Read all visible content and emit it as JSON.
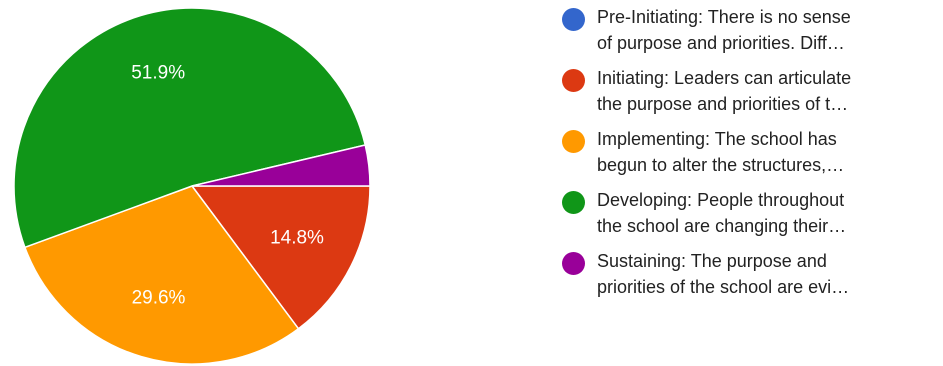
{
  "chart_data": {
    "type": "pie",
    "slices": [
      {
        "label": "Pre-Initiating: There is no sense of purpose and priorities. Diff…",
        "value": 0,
        "display": "",
        "color": "#3366cc",
        "legend_lines": [
          "Pre-Initiating: There is no sense",
          "of purpose and priorities. Diff…"
        ]
      },
      {
        "label": "Initiating: Leaders can articulate the purpose and priorities of t…",
        "value": 14.8,
        "display": "14.8%",
        "color": "#dc3912",
        "legend_lines": [
          "Initiating: Leaders can articulate",
          "the purpose and priorities of t…"
        ]
      },
      {
        "label": "Implementing: The school has begun to alter the structures,…",
        "value": 29.6,
        "display": "29.6%",
        "color": "#ff9900",
        "legend_lines": [
          "Implementing: The school has",
          "begun to alter the structures,…"
        ]
      },
      {
        "label": "Developing: People throughout the school are changing their…",
        "value": 51.9,
        "display": "51.9%",
        "color": "#109618",
        "legend_lines": [
          "Developing: People throughout",
          "the school are changing their…"
        ]
      },
      {
        "label": "Sustaining: The purpose and priorities of the school are evi…",
        "value": 3.7,
        "display": "",
        "color": "#990099",
        "legend_lines": [
          "Sustaining: The purpose and",
          "priorities of the school are evi…"
        ]
      }
    ],
    "legend_position": "right"
  }
}
